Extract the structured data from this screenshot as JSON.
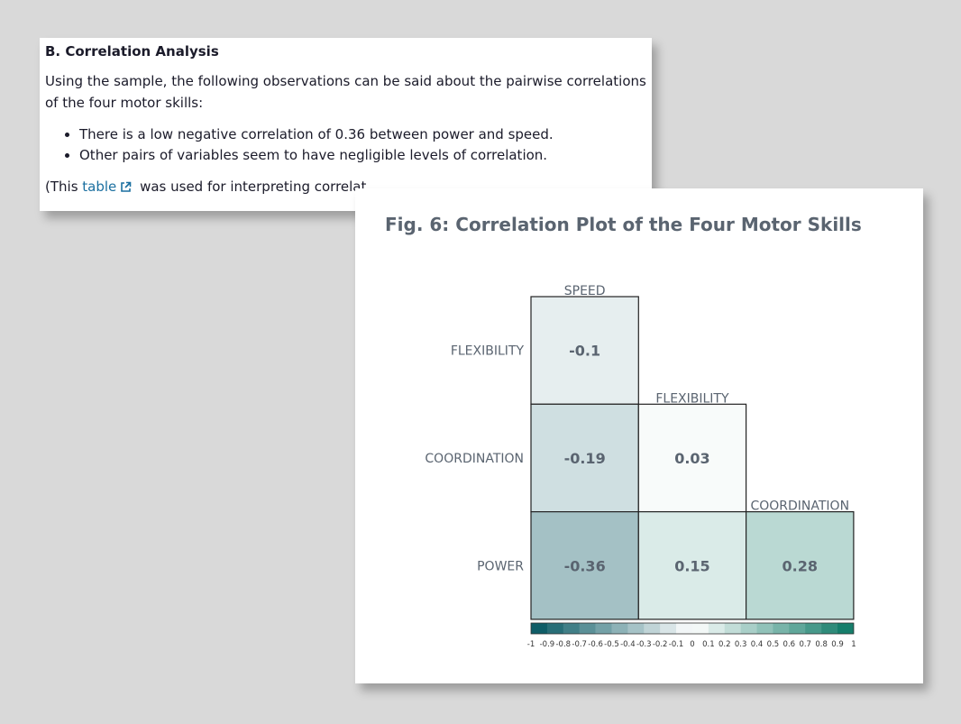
{
  "text_card": {
    "heading": "B. Correlation Analysis",
    "intro": "Using the sample, the following observations can be said about the pairwise correlations of the four motor skills:",
    "bullets": [
      "There is a low negative correlation of 0.36 between power and speed.",
      "Other pairs of variables seem to have negligible levels of correlation."
    ],
    "foot_prefix": "(This",
    "foot_link": "table",
    "foot_suffix": "was used for interpreting correlat"
  },
  "colors": {
    "negative_end": "#02545f",
    "positive_end": "#0a7763",
    "text": "#5a6470",
    "link": "#1a6fa0"
  },
  "chart_data": {
    "type": "heatmap",
    "title": "Fig. 6: Correlation Plot of the Four Motor Skills",
    "columns": [
      "SPEED",
      "FLEXIBILITY",
      "COORDINATION"
    ],
    "rows": [
      "FLEXIBILITY",
      "COORDINATION",
      "POWER"
    ],
    "cells": [
      {
        "row": "FLEXIBILITY",
        "col": "SPEED",
        "value": -0.1,
        "label": "-0.1"
      },
      {
        "row": "COORDINATION",
        "col": "SPEED",
        "value": -0.19,
        "label": "-0.19"
      },
      {
        "row": "COORDINATION",
        "col": "FLEXIBILITY",
        "value": 0.03,
        "label": "0.03"
      },
      {
        "row": "POWER",
        "col": "SPEED",
        "value": -0.36,
        "label": "-0.36"
      },
      {
        "row": "POWER",
        "col": "FLEXIBILITY",
        "value": 0.15,
        "label": "0.15"
      },
      {
        "row": "POWER",
        "col": "COORDINATION",
        "value": 0.28,
        "label": "0.28"
      }
    ],
    "colorbar_ticks": [
      "-1",
      "-0.9",
      "-0.8",
      "-0.7",
      "-0.6",
      "-0.5",
      "-0.4",
      "-0.3",
      "-0.2",
      "-0.1",
      "0",
      "0.1",
      "0.2",
      "0.3",
      "0.4",
      "0.5",
      "0.6",
      "0.7",
      "0.8",
      "0.9",
      "1"
    ],
    "range": [
      -1,
      1
    ]
  }
}
